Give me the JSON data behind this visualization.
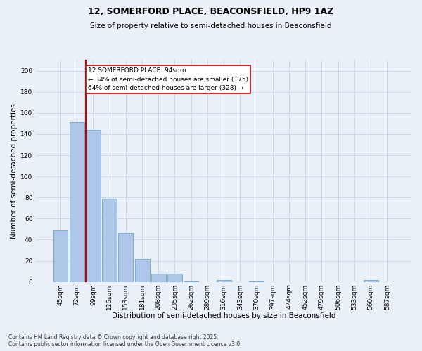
{
  "title1": "12, SOMERFORD PLACE, BEACONSFIELD, HP9 1AZ",
  "title2": "Size of property relative to semi-detached houses in Beaconsfield",
  "xlabel": "Distribution of semi-detached houses by size in Beaconsfield",
  "ylabel": "Number of semi-detached properties",
  "categories": [
    "45sqm",
    "72sqm",
    "99sqm",
    "126sqm",
    "153sqm",
    "181sqm",
    "208sqm",
    "235sqm",
    "262sqm",
    "289sqm",
    "316sqm",
    "343sqm",
    "370sqm",
    "397sqm",
    "424sqm",
    "452sqm",
    "479sqm",
    "506sqm",
    "533sqm",
    "560sqm",
    "587sqm"
  ],
  "values": [
    49,
    151,
    144,
    79,
    46,
    22,
    8,
    8,
    1,
    0,
    2,
    0,
    1,
    0,
    0,
    0,
    0,
    0,
    0,
    2,
    0
  ],
  "bar_color": "#aec6e8",
  "bar_edge_color": "#5a9ac8",
  "property_line_color": "#cc0000",
  "annotation_text": "12 SOMERFORD PLACE: 94sqm\n← 34% of semi-detached houses are smaller (175)\n64% of semi-detached houses are larger (328) →",
  "annotation_box_color": "#ffffff",
  "annotation_box_edge": "#cc0000",
  "footer": "Contains HM Land Registry data © Crown copyright and database right 2025.\nContains public sector information licensed under the Open Government Licence v3.0.",
  "ylim": [
    0,
    210
  ],
  "yticks": [
    0,
    20,
    40,
    60,
    80,
    100,
    120,
    140,
    160,
    180,
    200
  ],
  "grid_color": "#d0d8e8",
  "bg_color": "#eaf0f8",
  "title_fontsize": 9,
  "subtitle_fontsize": 7.5,
  "xlabel_fontsize": 7.5,
  "ylabel_fontsize": 7.5,
  "tick_fontsize": 6.5,
  "annotation_fontsize": 6.5,
  "footer_fontsize": 5.5
}
